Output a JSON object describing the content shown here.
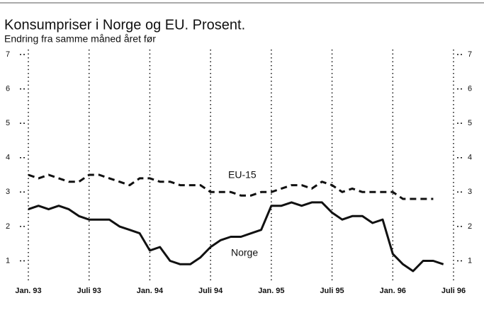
{
  "chart_data": {
    "type": "line",
    "title": "Konsumpriser i Norge og EU. Prosent.",
    "subtitle": "Endring fra samme måned året før",
    "categories": [
      "Jan. 93",
      null,
      null,
      null,
      null,
      null,
      "Juli 93",
      null,
      null,
      null,
      null,
      null,
      "Jan. 94",
      null,
      null,
      null,
      null,
      null,
      "Juli 94",
      null,
      null,
      null,
      null,
      null,
      "Jan. 95",
      null,
      null,
      null,
      null,
      null,
      "Juli 95",
      null,
      null,
      null,
      null,
      null,
      "Jan. 96",
      null,
      null,
      null,
      null,
      null,
      "Juli 96"
    ],
    "series": [
      {
        "name": "EU-15",
        "color": "#111111",
        "dash": true,
        "values": [
          3.5,
          3.4,
          3.5,
          3.4,
          3.3,
          3.3,
          3.5,
          3.5,
          3.4,
          3.3,
          3.2,
          3.4,
          3.4,
          3.3,
          3.3,
          3.2,
          3.2,
          3.2,
          3.0,
          3.0,
          3.0,
          2.9,
          2.9,
          3.0,
          3.0,
          3.1,
          3.2,
          3.2,
          3.1,
          3.3,
          3.2,
          3.0,
          3.1,
          3.0,
          3.0,
          3.0,
          3.0,
          2.8,
          2.8,
          2.8,
          2.8,
          null,
          null
        ]
      },
      {
        "name": "Norge",
        "color": "#111111",
        "dash": false,
        "values": [
          2.5,
          2.6,
          2.5,
          2.6,
          2.5,
          2.3,
          2.2,
          2.2,
          2.2,
          2.0,
          1.9,
          1.8,
          1.3,
          1.4,
          1.0,
          0.9,
          0.9,
          1.1,
          1.4,
          1.6,
          1.7,
          1.7,
          1.8,
          1.9,
          2.6,
          2.6,
          2.7,
          2.6,
          2.7,
          2.7,
          2.4,
          2.2,
          2.3,
          2.3,
          2.1,
          2.2,
          1.2,
          0.9,
          0.7,
          1.0,
          1.0,
          0.9,
          null
        ]
      }
    ],
    "ylim": [
      0.4,
      7
    ],
    "yticks": [
      1,
      2,
      3,
      4,
      5,
      6,
      7
    ]
  }
}
